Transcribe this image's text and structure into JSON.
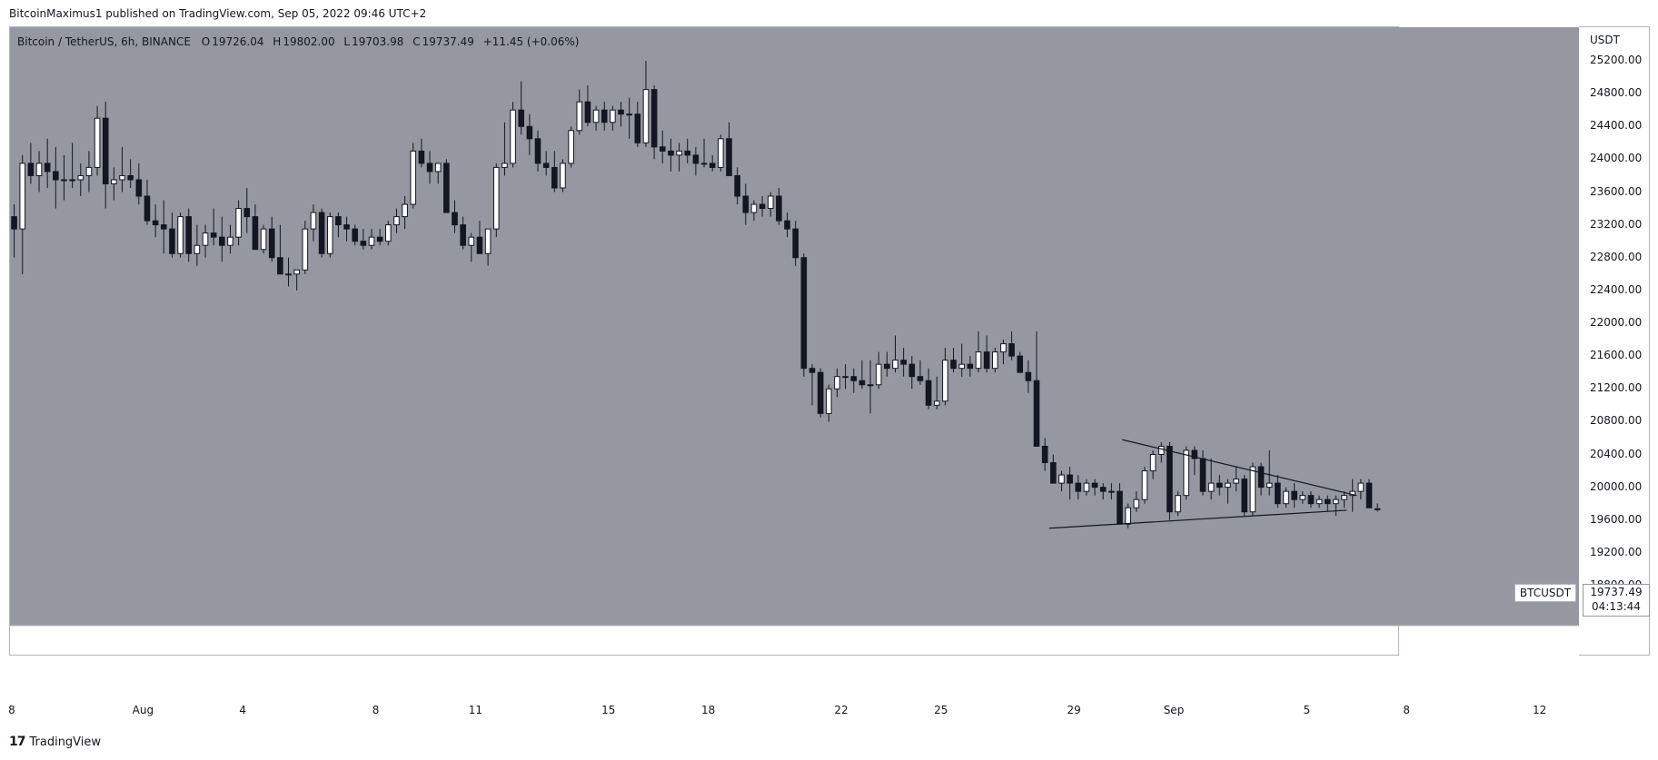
{
  "publish": {
    "author": "BitcoinMaximus1",
    "text": "BitcoinMaximus1 published on TradingView.com, Sep 05, 2022 09:46 UTC+2"
  },
  "legend": {
    "symbol": "Bitcoin / TetherUS, 6h, BINANCE",
    "o_label": "O",
    "o": "19726.04",
    "h_label": "H",
    "h": "19802.00",
    "l_label": "L",
    "l": "19703.98",
    "c_label": "C",
    "c": "19737.49",
    "change": "+11.45 (+0.06%)"
  },
  "y_axis": {
    "unit": "USDT",
    "ticks": [
      "25200.00",
      "24800.00",
      "24400.00",
      "24000.00",
      "23600.00",
      "23200.00",
      "22800.00",
      "22400.00",
      "22000.00",
      "21600.00",
      "21200.00",
      "20800.00",
      "20400.00",
      "20000.00",
      "19600.00",
      "19200.00",
      "18800.00"
    ]
  },
  "x_axis": {
    "ticks": [
      "8",
      "Aug",
      "4",
      "8",
      "11",
      "15",
      "18",
      "22",
      "25",
      "29",
      "Sep",
      "5",
      "8",
      "12"
    ]
  },
  "last_price": {
    "symbol": "BTCUSDT",
    "price": "19737.49",
    "countdown": "04:13:44"
  },
  "footer": {
    "brand": "TradingView",
    "logo_mark": "17"
  },
  "colors": {
    "plot_bg": "#9598a1",
    "up": "#ffffff",
    "down": "#131722",
    "wick": "#131722"
  },
  "chart_data": {
    "type": "candlestick",
    "title": "Bitcoin / TetherUS, 6h, BINANCE",
    "x_start": "Jul 28",
    "x_end": "Sep 13",
    "ylim": [
      18550,
      25550
    ],
    "grid": false,
    "series": [
      {
        "ohlc": [
          [
            23300,
            23450,
            22800,
            23150
          ],
          [
            23150,
            24050,
            22600,
            23950
          ],
          [
            23950,
            24200,
            23700,
            23800
          ],
          [
            23800,
            24100,
            23600,
            23950
          ],
          [
            23950,
            24250,
            23650,
            23850
          ],
          [
            23850,
            24150,
            23400,
            23750
          ],
          [
            23750,
            24050,
            23500,
            23750
          ],
          [
            23750,
            24200,
            23650,
            23750
          ],
          [
            23750,
            23950,
            23550,
            23800
          ],
          [
            23800,
            24100,
            23600,
            23900
          ],
          [
            23900,
            24650,
            23800,
            24500
          ],
          [
            24500,
            24700,
            23400,
            23700
          ],
          [
            23700,
            23900,
            23500,
            23750
          ],
          [
            23750,
            24150,
            23600,
            23800
          ],
          [
            23800,
            24000,
            23650,
            23750
          ],
          [
            23750,
            23950,
            23450,
            23550
          ],
          [
            23550,
            23750,
            23200,
            23250
          ],
          [
            23250,
            23450,
            23050,
            23200
          ],
          [
            23200,
            23500,
            22850,
            23150
          ],
          [
            23150,
            23350,
            22800,
            22850
          ],
          [
            22850,
            23350,
            22800,
            23300
          ],
          [
            23300,
            23400,
            22750,
            22850
          ],
          [
            22850,
            23200,
            22700,
            22950
          ],
          [
            22950,
            23200,
            22800,
            23100
          ],
          [
            23100,
            23400,
            22950,
            23050
          ],
          [
            23050,
            23300,
            22750,
            22950
          ],
          [
            22950,
            23200,
            22850,
            23050
          ],
          [
            23050,
            23500,
            22950,
            23400
          ],
          [
            23400,
            23650,
            23100,
            23300
          ],
          [
            23300,
            23450,
            22900,
            22900
          ],
          [
            22900,
            23200,
            22850,
            23150
          ],
          [
            23150,
            23300,
            22750,
            22800
          ],
          [
            22800,
            23200,
            22600,
            22600
          ],
          [
            22600,
            22800,
            22450,
            22600
          ],
          [
            22600,
            22650,
            22400,
            22650
          ],
          [
            22650,
            23250,
            22600,
            23150
          ],
          [
            23150,
            23450,
            23000,
            23350
          ],
          [
            23350,
            23400,
            22800,
            22850
          ],
          [
            22850,
            23350,
            22800,
            23300
          ],
          [
            23300,
            23350,
            23050,
            23200
          ],
          [
            23200,
            23300,
            23000,
            23150
          ],
          [
            23150,
            23200,
            22950,
            23000
          ],
          [
            23000,
            23150,
            22900,
            22950
          ],
          [
            22950,
            23150,
            22900,
            23050
          ],
          [
            23050,
            23150,
            22950,
            23000
          ],
          [
            23000,
            23250,
            22950,
            23200
          ],
          [
            23200,
            23400,
            23100,
            23300
          ],
          [
            23300,
            23550,
            23150,
            23450
          ],
          [
            23450,
            24200,
            23400,
            24100
          ],
          [
            24100,
            24250,
            23900,
            23950
          ],
          [
            23950,
            24100,
            23700,
            23850
          ],
          [
            23850,
            23950,
            23700,
            23950
          ],
          [
            23950,
            24000,
            23400,
            23350
          ],
          [
            23350,
            23500,
            23100,
            23200
          ],
          [
            23200,
            23300,
            22900,
            22950
          ],
          [
            22950,
            23100,
            22750,
            23050
          ],
          [
            23050,
            23250,
            22850,
            22850
          ],
          [
            22850,
            23150,
            22700,
            23150
          ],
          [
            23150,
            23950,
            23050,
            23900
          ],
          [
            23900,
            24450,
            23800,
            23950
          ],
          [
            23950,
            24700,
            23900,
            24600
          ],
          [
            24600,
            24950,
            24300,
            24400
          ],
          [
            24400,
            24550,
            24050,
            24250
          ],
          [
            24250,
            24350,
            23850,
            23950
          ],
          [
            23950,
            24100,
            23800,
            23900
          ],
          [
            23900,
            24100,
            23600,
            23650
          ],
          [
            23650,
            24000,
            23600,
            23950
          ],
          [
            23950,
            24400,
            23900,
            24350
          ],
          [
            24350,
            24850,
            24300,
            24700
          ],
          [
            24700,
            24900,
            24400,
            24450
          ],
          [
            24450,
            24650,
            24350,
            24600
          ],
          [
            24600,
            24700,
            24350,
            24450
          ],
          [
            24450,
            24650,
            24350,
            24600
          ],
          [
            24600,
            24700,
            24400,
            24550
          ],
          [
            24550,
            24750,
            24250,
            24550
          ],
          [
            24550,
            24700,
            24150,
            24200
          ],
          [
            24200,
            25200,
            24150,
            24850
          ],
          [
            24850,
            24900,
            24000,
            24150
          ],
          [
            24150,
            24350,
            23950,
            24100
          ],
          [
            24100,
            24250,
            23850,
            24050
          ],
          [
            24050,
            24200,
            23850,
            24100
          ],
          [
            24100,
            24250,
            23950,
            24050
          ],
          [
            24050,
            24150,
            23800,
            23950
          ],
          [
            23950,
            24250,
            23900,
            23950
          ],
          [
            23950,
            24050,
            23850,
            23900
          ],
          [
            23900,
            24300,
            23850,
            24250
          ],
          [
            24250,
            24450,
            23850,
            23800
          ],
          [
            23800,
            23900,
            23450,
            23550
          ],
          [
            23550,
            23700,
            23200,
            23350
          ],
          [
            23350,
            23500,
            23250,
            23450
          ],
          [
            23450,
            23550,
            23300,
            23400
          ],
          [
            23400,
            23600,
            23300,
            23550
          ],
          [
            23550,
            23650,
            23200,
            23250
          ],
          [
            23250,
            23350,
            23050,
            23150
          ],
          [
            23150,
            23250,
            22700,
            22800
          ],
          [
            22800,
            22850,
            21350,
            21450
          ],
          [
            21450,
            21500,
            21000,
            21400
          ],
          [
            21400,
            21450,
            20850,
            20900
          ],
          [
            20900,
            21250,
            20800,
            21200
          ],
          [
            21200,
            21450,
            21100,
            21350
          ],
          [
            21350,
            21500,
            21200,
            21350
          ],
          [
            21350,
            21450,
            21150,
            21300
          ],
          [
            21300,
            21550,
            21200,
            21250
          ],
          [
            21250,
            21550,
            20900,
            21250
          ],
          [
            21250,
            21650,
            21200,
            21500
          ],
          [
            21500,
            21650,
            21350,
            21450
          ],
          [
            21450,
            21850,
            21400,
            21550
          ],
          [
            21550,
            21700,
            21350,
            21500
          ],
          [
            21500,
            21600,
            21200,
            21350
          ],
          [
            21350,
            21550,
            21250,
            21300
          ],
          [
            21300,
            21450,
            20950,
            21000
          ],
          [
            21000,
            21350,
            20950,
            21050
          ],
          [
            21050,
            21700,
            21000,
            21550
          ],
          [
            21550,
            21700,
            21400,
            21450
          ],
          [
            21450,
            21750,
            21350,
            21500
          ],
          [
            21500,
            21600,
            21350,
            21450
          ],
          [
            21450,
            21900,
            21400,
            21650
          ],
          [
            21650,
            21850,
            21400,
            21450
          ],
          [
            21450,
            21700,
            21400,
            21650
          ],
          [
            21650,
            21800,
            21500,
            21750
          ],
          [
            21750,
            21900,
            21550,
            21600
          ],
          [
            21600,
            21650,
            21400,
            21400
          ],
          [
            21400,
            21550,
            21150,
            21300
          ],
          [
            21300,
            21900,
            20500,
            20500
          ],
          [
            20500,
            20600,
            20200,
            20300
          ],
          [
            20300,
            20400,
            20050,
            20050
          ],
          [
            20050,
            20200,
            19950,
            20150
          ],
          [
            20150,
            20250,
            19850,
            20050
          ],
          [
            20050,
            20150,
            19850,
            19950
          ],
          [
            19950,
            20100,
            19900,
            20050
          ],
          [
            20050,
            20100,
            19900,
            20000
          ],
          [
            20000,
            20050,
            19850,
            19950
          ],
          [
            19950,
            20050,
            19850,
            19950
          ],
          [
            19950,
            20050,
            19550,
            19550
          ],
          [
            19550,
            19800,
            19500,
            19750
          ],
          [
            19750,
            19950,
            19700,
            19850
          ],
          [
            19850,
            20250,
            19800,
            20200
          ],
          [
            20200,
            20450,
            20100,
            20400
          ],
          [
            20400,
            20550,
            20300,
            20500
          ],
          [
            20500,
            20550,
            19600,
            19700
          ],
          [
            19700,
            19950,
            19650,
            19900
          ],
          [
            19900,
            20500,
            19850,
            20450
          ],
          [
            20450,
            20500,
            20150,
            20350
          ],
          [
            20350,
            20450,
            19900,
            19950
          ],
          [
            19950,
            20350,
            19850,
            20050
          ],
          [
            20050,
            20150,
            19900,
            20000
          ],
          [
            20000,
            20100,
            19800,
            20050
          ],
          [
            20050,
            20250,
            19950,
            20100
          ],
          [
            20100,
            20150,
            19650,
            19700
          ],
          [
            19700,
            20300,
            19650,
            20250
          ],
          [
            20250,
            20300,
            19900,
            20000
          ],
          [
            20000,
            20450,
            19900,
            20050
          ],
          [
            20050,
            20150,
            19750,
            19800
          ],
          [
            19800,
            20000,
            19750,
            19950
          ],
          [
            19950,
            20050,
            19750,
            19850
          ],
          [
            19850,
            19950,
            19800,
            19900
          ],
          [
            19900,
            19950,
            19750,
            19800
          ],
          [
            19800,
            19900,
            19750,
            19850
          ],
          [
            19850,
            19900,
            19700,
            19800
          ],
          [
            19800,
            19900,
            19650,
            19850
          ],
          [
            19850,
            19950,
            19750,
            19900
          ],
          [
            19900,
            20100,
            19700,
            19950
          ],
          [
            19950,
            20100,
            19850,
            20050
          ],
          [
            20050,
            20100,
            19750,
            19750
          ],
          [
            19726.04,
            19802,
            19703.98,
            19737.49
          ]
        ]
      }
    ],
    "annotations": [
      {
        "type": "trendline",
        "from": [
          "Aug 30",
          20580
        ],
        "to": [
          "Sep 6",
          19900
        ]
      },
      {
        "type": "trendline",
        "from": [
          "Aug 28",
          19500
        ],
        "to": [
          "Sep 6",
          19720
        ]
      }
    ]
  }
}
